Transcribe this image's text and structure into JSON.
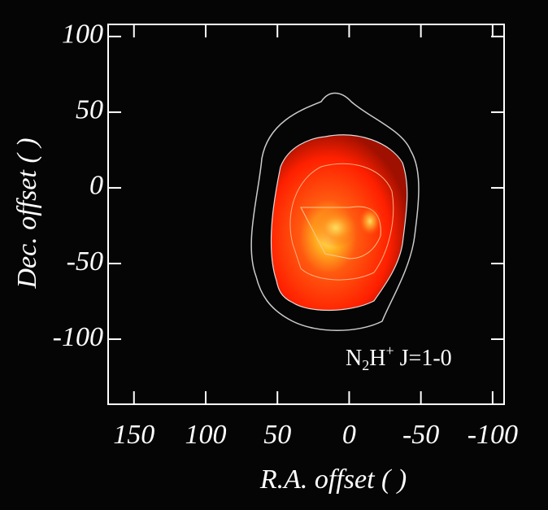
{
  "chart_data": {
    "type": "contour",
    "xlabel": "R.A. offset ( )",
    "ylabel": "Dec. offset ( )",
    "annotation_parts": [
      "N",
      "2",
      "H",
      "+",
      " J=1-0"
    ],
    "xlim": [
      168,
      -108
    ],
    "xticks": [
      150,
      100,
      50,
      0,
      -50,
      -100
    ],
    "ylim": [
      -143,
      108
    ],
    "yticks": [
      100,
      50,
      0,
      -50,
      -100
    ]
  }
}
